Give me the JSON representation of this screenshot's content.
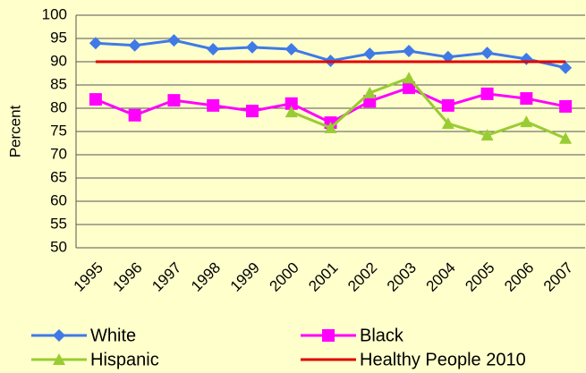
{
  "chart_data": {
    "type": "line",
    "y_label": "Percent",
    "categories": [
      "1995",
      "1996",
      "1997",
      "1998",
      "1999",
      "2000",
      "2001",
      "2002",
      "2003",
      "2004",
      "2005",
      "2006",
      "2007"
    ],
    "series": [
      {
        "name": "White",
        "color": "#3f7ae6",
        "marker": "diamond",
        "values": [
          94.0,
          93.5,
          94.6,
          92.7,
          93.1,
          92.7,
          90.2,
          91.7,
          92.3,
          91.0,
          91.9,
          90.6,
          88.7
        ]
      },
      {
        "name": "Black",
        "color": "#ff00ff",
        "marker": "square",
        "values": [
          81.9,
          78.5,
          81.7,
          80.6,
          79.4,
          81.0,
          76.9,
          81.5,
          84.4,
          80.6,
          83.1,
          82.1,
          80.4
        ]
      },
      {
        "name": "Hispanic",
        "color": "#99cc33",
        "marker": "triangle",
        "values": [
          null,
          null,
          null,
          null,
          null,
          79.2,
          75.8,
          83.3,
          86.5,
          76.7,
          74.2,
          77.1,
          73.5
        ]
      },
      {
        "name": "Healthy People 2010",
        "color": "#e00000",
        "marker": "none",
        "values": [
          90,
          90,
          90,
          90,
          90,
          90,
          90,
          90,
          90,
          90,
          90,
          90,
          90
        ]
      }
    ],
    "ylim": [
      50,
      100
    ],
    "yticks": [
      50,
      55,
      60,
      65,
      70,
      75,
      80,
      85,
      90,
      95,
      100
    ],
    "grid": true
  }
}
